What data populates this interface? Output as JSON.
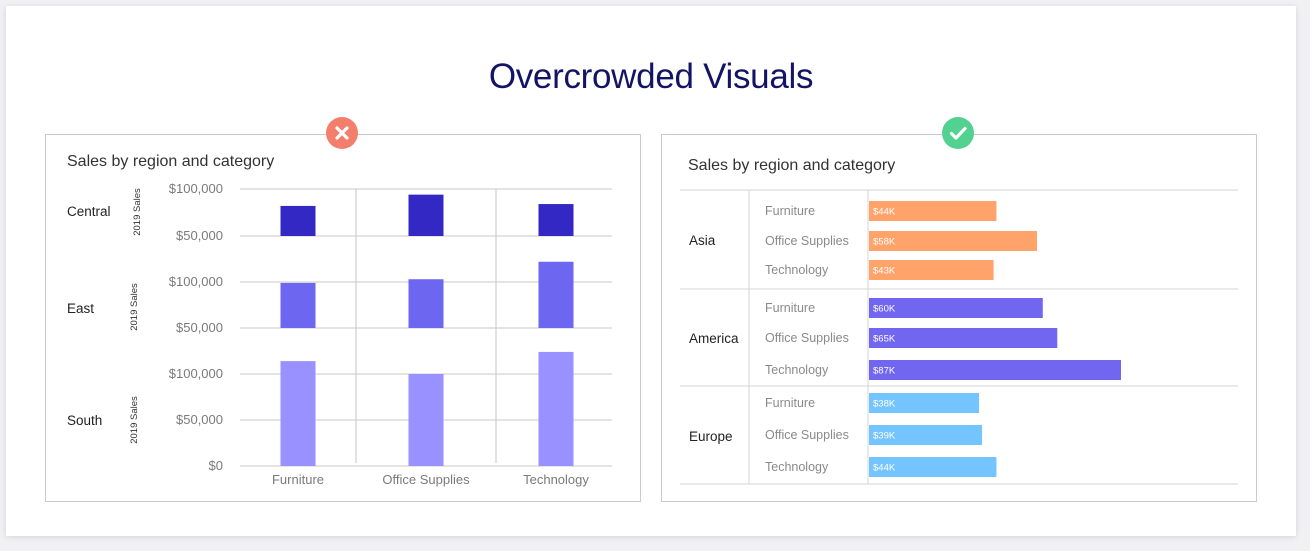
{
  "page": {
    "title": "Overcrowded Visuals"
  },
  "colors": {
    "bad_badge": "#f47e6c",
    "good_badge": "#52d191",
    "central": "#3328c4",
    "east": "#6c66f0",
    "south": "#9891ff",
    "asia": "#ffa36b",
    "america": "#7066f0",
    "europe": "#74c4ff"
  },
  "chart_data": [
    {
      "type": "bar",
      "title": "Sales by region and category",
      "categories": [
        "Furniture",
        "Office Supplies",
        "Technology"
      ],
      "ylabel": "2019 Sales",
      "ylim": [
        0,
        100000
      ],
      "yticks": [
        "$0",
        "$50,000",
        "$100,000"
      ],
      "rows": [
        {
          "name": "Central",
          "values": [
            82000,
            94000,
            84000
          ]
        },
        {
          "name": "East",
          "values": [
            99000,
            103000,
            122000
          ]
        },
        {
          "name": "South",
          "values": [
            114000,
            100000,
            124000
          ]
        }
      ]
    },
    {
      "type": "bar",
      "title": "Sales by region and category",
      "orientation": "horizontal",
      "groups": [
        {
          "name": "Asia",
          "bars": [
            {
              "category": "Furniture",
              "value": 44000,
              "label": "$44K"
            },
            {
              "category": "Office Supplies",
              "value": 58000,
              "label": "$58K"
            },
            {
              "category": "Technology",
              "value": 43000,
              "label": "$43K"
            }
          ]
        },
        {
          "name": "America",
          "bars": [
            {
              "category": "Furniture",
              "value": 60000,
              "label": "$60K"
            },
            {
              "category": "Office Supplies",
              "value": 65000,
              "label": "$65K"
            },
            {
              "category": "Technology",
              "value": 87000,
              "label": "$87K"
            }
          ]
        },
        {
          "name": "Europe",
          "bars": [
            {
              "category": "Furniture",
              "value": 38000,
              "label": "$38K"
            },
            {
              "category": "Office Supplies",
              "value": 39000,
              "label": "$39K"
            },
            {
              "category": "Technology",
              "value": 44000,
              "label": "$44K"
            }
          ]
        }
      ]
    }
  ]
}
